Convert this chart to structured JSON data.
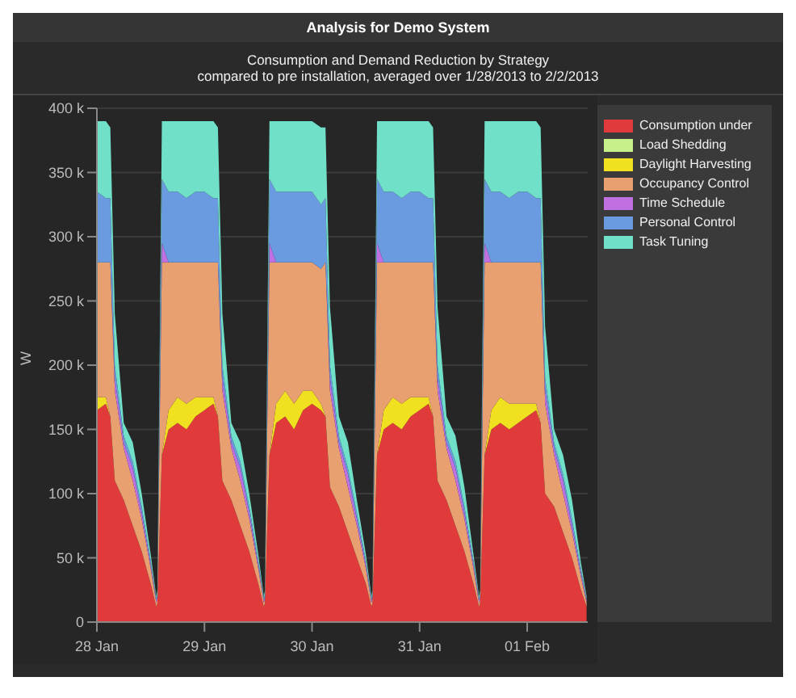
{
  "chart_data": {
    "type": "area",
    "title": "Analysis for Demo System",
    "subtitle": "Consumption and Demand Reduction by Strategy\ncompared to pre installation, averaged over 1/28/2013 to 2/2/2013",
    "ylabel": "W",
    "stacked": true,
    "legend": "right",
    "grid": "y",
    "xlim": [
      "2013-01-28T00:00",
      "2013-02-01T13:30"
    ],
    "xticks": [
      {
        "value": "2013-01-28",
        "label": "28 Jan"
      },
      {
        "value": "2013-01-29",
        "label": "29 Jan"
      },
      {
        "value": "2013-01-30",
        "label": "30 Jan"
      },
      {
        "value": "2013-01-31",
        "label": "31 Jan"
      },
      {
        "value": "2013-02-01",
        "label": "01 Feb"
      }
    ],
    "ylim": [
      0,
      400000
    ],
    "yticks": [
      {
        "value": 0,
        "label": "0"
      },
      {
        "value": 50000,
        "label": "50 k"
      },
      {
        "value": 100000,
        "label": "100 k"
      },
      {
        "value": 150000,
        "label": "150 k"
      },
      {
        "value": 200000,
        "label": "200 k"
      },
      {
        "value": 250000,
        "label": "250 k"
      },
      {
        "value": 300000,
        "label": "300 k"
      },
      {
        "value": 350000,
        "label": "350 k"
      },
      {
        "value": 400000,
        "label": "400 k"
      }
    ],
    "x": [
      "2013-01-28T00:00",
      "2013-01-28T02:00",
      "2013-01-28T03:00",
      "2013-01-28T04:00",
      "2013-01-28T06:00",
      "2013-01-28T08:00",
      "2013-01-28T10:00",
      "2013-01-28T12:00",
      "2013-01-28T13:15",
      "2013-01-28T13:30",
      "2013-01-28T14:30",
      "2013-01-28T16:00",
      "2013-01-28T18:00",
      "2013-01-28T20:00",
      "2013-01-28T22:00",
      "2013-01-29T00:00",
      "2013-01-29T02:00",
      "2013-01-29T03:00",
      "2013-01-29T04:00",
      "2013-01-29T06:00",
      "2013-01-29T08:00",
      "2013-01-29T10:00",
      "2013-01-29T12:00",
      "2013-01-29T13:15",
      "2013-01-29T13:30",
      "2013-01-29T14:30",
      "2013-01-29T16:00",
      "2013-01-29T18:00",
      "2013-01-29T20:00",
      "2013-01-29T22:00",
      "2013-01-30T00:00",
      "2013-01-30T02:00",
      "2013-01-30T03:00",
      "2013-01-30T04:00",
      "2013-01-30T06:00",
      "2013-01-30T08:00",
      "2013-01-30T10:00",
      "2013-01-30T12:00",
      "2013-01-30T13:15",
      "2013-01-30T13:30",
      "2013-01-30T14:30",
      "2013-01-30T16:00",
      "2013-01-30T18:00",
      "2013-01-30T20:00",
      "2013-01-30T22:00",
      "2013-01-31T00:00",
      "2013-01-31T02:00",
      "2013-01-31T03:00",
      "2013-01-31T04:00",
      "2013-01-31T06:00",
      "2013-01-31T08:00",
      "2013-01-31T10:00",
      "2013-01-31T12:00",
      "2013-01-31T13:15",
      "2013-01-31T13:30",
      "2013-01-31T14:30",
      "2013-01-31T16:00",
      "2013-01-31T18:00",
      "2013-01-31T20:00",
      "2013-01-31T22:00",
      "2013-02-01T00:00",
      "2013-02-01T02:00",
      "2013-02-01T03:00",
      "2013-02-01T04:00",
      "2013-02-01T06:00",
      "2013-02-01T08:00",
      "2013-02-01T10:00",
      "2013-02-01T12:00",
      "2013-02-01T13:15"
    ],
    "series": [
      {
        "name": "Consumption under",
        "color": "#e03a3a",
        "values": [
          165000,
          170000,
          160000,
          110000,
          95000,
          75000,
          55000,
          30000,
          12000,
          15000,
          130000,
          150000,
          155000,
          150000,
          160000,
          165000,
          170000,
          160000,
          110000,
          95000,
          75000,
          55000,
          30000,
          12000,
          15000,
          130000,
          155000,
          160000,
          150000,
          165000,
          170000,
          165000,
          160000,
          105000,
          90000,
          70000,
          50000,
          30000,
          12000,
          15000,
          130000,
          150000,
          155000,
          150000,
          160000,
          165000,
          170000,
          160000,
          110000,
          95000,
          75000,
          55000,
          30000,
          12000,
          15000,
          130000,
          150000,
          155000,
          150000,
          155000,
          160000,
          165000,
          155000,
          100000,
          90000,
          70000,
          50000,
          25000,
          12000
        ]
      },
      {
        "name": "Load Shedding",
        "color": "#c8f08a",
        "values": [
          null,
          null,
          null,
          null,
          null,
          null,
          null,
          null,
          null,
          null,
          null,
          null,
          null,
          null,
          null,
          null,
          null,
          null,
          null,
          null,
          null,
          null,
          null,
          null,
          null,
          null,
          null,
          null,
          null,
          null,
          null,
          null,
          null,
          null,
          null,
          null,
          null,
          null,
          null,
          null,
          null,
          null,
          null,
          null,
          null,
          null,
          null,
          null,
          null,
          null,
          null,
          null,
          null,
          null,
          null,
          null,
          null,
          null,
          null,
          null,
          null,
          null,
          null,
          null,
          null,
          null,
          null,
          null,
          null
        ]
      },
      {
        "name": "Daylight Harvesting",
        "color": "#f0e020",
        "values": [
          10000,
          5000,
          0,
          0,
          0,
          0,
          0,
          0,
          0,
          0,
          0,
          15000,
          20000,
          20000,
          15000,
          10000,
          5000,
          0,
          0,
          0,
          0,
          0,
          0,
          0,
          0,
          0,
          15000,
          20000,
          20000,
          15000,
          10000,
          5000,
          0,
          0,
          0,
          0,
          0,
          0,
          0,
          0,
          0,
          15000,
          20000,
          20000,
          15000,
          10000,
          5000,
          0,
          0,
          0,
          0,
          0,
          0,
          0,
          0,
          0,
          15000,
          20000,
          20000,
          15000,
          10000,
          5000,
          0,
          0,
          0,
          0,
          0,
          0,
          0
        ]
      },
      {
        "name": "Occupancy Control",
        "color": "#e8a070",
        "values": [
          105000,
          105000,
          120000,
          70000,
          40000,
          35000,
          25000,
          12000,
          3000,
          3000,
          150000,
          115000,
          105000,
          110000,
          105000,
          105000,
          105000,
          120000,
          70000,
          40000,
          35000,
          25000,
          12000,
          3000,
          3000,
          150000,
          110000,
          100000,
          110000,
          100000,
          100000,
          105000,
          120000,
          75000,
          45000,
          35000,
          25000,
          12000,
          3000,
          3000,
          150000,
          115000,
          105000,
          110000,
          105000,
          105000,
          105000,
          120000,
          70000,
          40000,
          35000,
          25000,
          12000,
          3000,
          3000,
          150000,
          115000,
          105000,
          110000,
          110000,
          110000,
          110000,
          125000,
          70000,
          40000,
          30000,
          20000,
          10000,
          3000
        ]
      },
      {
        "name": "Time Schedule",
        "color": "#c070e0",
        "values": [
          0,
          0,
          0,
          10000,
          5000,
          10000,
          5000,
          3000,
          2000,
          2000,
          15000,
          0,
          0,
          0,
          0,
          0,
          0,
          0,
          10000,
          5000,
          10000,
          5000,
          3000,
          2000,
          2000,
          15000,
          0,
          0,
          0,
          0,
          0,
          0,
          0,
          10000,
          5000,
          10000,
          5000,
          3000,
          2000,
          2000,
          15000,
          0,
          0,
          0,
          0,
          0,
          0,
          0,
          10000,
          5000,
          10000,
          5000,
          3000,
          2000,
          2000,
          15000,
          0,
          0,
          0,
          0,
          0,
          0,
          0,
          10000,
          5000,
          10000,
          5000,
          3000,
          2000
        ]
      },
      {
        "name": "Personal Control",
        "color": "#6a9ae0",
        "values": [
          55000,
          50000,
          50000,
          10000,
          5000,
          5000,
          5000,
          3000,
          1000,
          2000,
          50000,
          55000,
          55000,
          50000,
          55000,
          55000,
          50000,
          50000,
          10000,
          5000,
          5000,
          5000,
          3000,
          1000,
          2000,
          50000,
          55000,
          55000,
          55000,
          55000,
          55000,
          50000,
          50000,
          10000,
          5000,
          5000,
          5000,
          3000,
          1000,
          2000,
          50000,
          55000,
          55000,
          50000,
          55000,
          55000,
          50000,
          50000,
          10000,
          5000,
          5000,
          5000,
          3000,
          1000,
          2000,
          50000,
          55000,
          55000,
          50000,
          55000,
          55000,
          50000,
          50000,
          10000,
          5000,
          5000,
          5000,
          3000,
          1000
        ]
      },
      {
        "name": "Task Tuning",
        "color": "#70e0c8",
        "values": [
          55000,
          60000,
          55000,
          40000,
          10000,
          15000,
          10000,
          5000,
          2000,
          3000,
          45000,
          55000,
          55000,
          60000,
          55000,
          55000,
          60000,
          55000,
          40000,
          10000,
          15000,
          10000,
          5000,
          2000,
          3000,
          45000,
          55000,
          55000,
          55000,
          55000,
          55000,
          60000,
          55000,
          45000,
          15000,
          20000,
          10000,
          5000,
          2000,
          3000,
          45000,
          55000,
          55000,
          60000,
          55000,
          55000,
          60000,
          55000,
          45000,
          15000,
          20000,
          15000,
          5000,
          2000,
          3000,
          45000,
          55000,
          55000,
          60000,
          55000,
          55000,
          60000,
          55000,
          40000,
          10000,
          15000,
          15000,
          5000,
          2000
        ]
      }
    ]
  }
}
